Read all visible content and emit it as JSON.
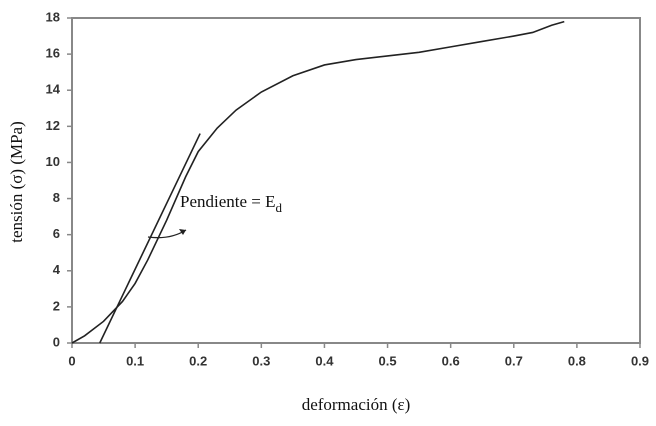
{
  "chart_data": {
    "type": "line",
    "xlabel": "deformación (ε)",
    "ylabel": "tensión (σ) (MPa)",
    "annotation": {
      "text": "Pendiente = E",
      "subscript": "d"
    },
    "series": [
      {
        "color": "#222222",
        "x": [
          0,
          0.02,
          0.05,
          0.08,
          0.1,
          0.12,
          0.15,
          0.18,
          0.2,
          0.23,
          0.26,
          0.3,
          0.35,
          0.4,
          0.45,
          0.5,
          0.55,
          0.6,
          0.65,
          0.7,
          0.73,
          0.76,
          0.78
        ],
        "values": [
          0,
          0.4,
          1.2,
          2.3,
          3.3,
          4.6,
          6.8,
          9.2,
          10.6,
          11.9,
          12.9,
          13.9,
          14.8,
          15.4,
          15.7,
          15.9,
          16.1,
          16.4,
          16.7,
          17.0,
          17.2,
          17.6,
          17.8
        ]
      },
      {
        "color": "#222222",
        "x": [
          0.044,
          0.203
        ],
        "values": [
          0,
          11.6
        ]
      }
    ],
    "xlim": [
      0,
      0.9
    ],
    "xticks": [
      0,
      0.1,
      0.2,
      0.3,
      0.4,
      0.5,
      0.6,
      0.7,
      0.8,
      0.9
    ],
    "ylim": [
      0,
      18
    ],
    "yticks": [
      0,
      2,
      4,
      6,
      8,
      10,
      12,
      14,
      16,
      18
    ],
    "grid": false
  }
}
